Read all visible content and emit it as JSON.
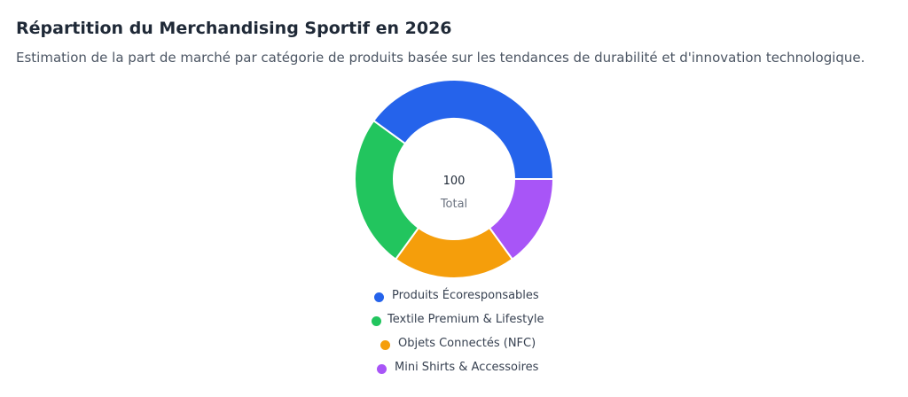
{
  "header": {
    "title": "Répartition du Merchandising Sportif en 2026",
    "subtitle": "Estimation de la part de marché par catégorie de produits basée sur les tendances de durabilité et d'innovation technologique."
  },
  "chart_data": {
    "type": "pie",
    "variant": "donut",
    "title": "Répartition du Merchandising Sportif en 2026",
    "subtitle": "Estimation de la part de marché par catégorie de produits basée sur les tendances de durabilité et d'innovation technologique.",
    "center": {
      "value": "100",
      "label": "Total"
    },
    "legend_position": "bottom",
    "slices": [
      {
        "label": "Produits Écoresponsables",
        "value": 40,
        "color": "#2563eb"
      },
      {
        "label": "Textile Premium & Lifestyle",
        "value": 25,
        "color": "#22c55e"
      },
      {
        "label": "Objets Connectés (NFC)",
        "value": 20,
        "color": "#f59e0b"
      },
      {
        "label": "Mini Shirts & Accessoires",
        "value": 15,
        "color": "#a855f7"
      }
    ]
  }
}
